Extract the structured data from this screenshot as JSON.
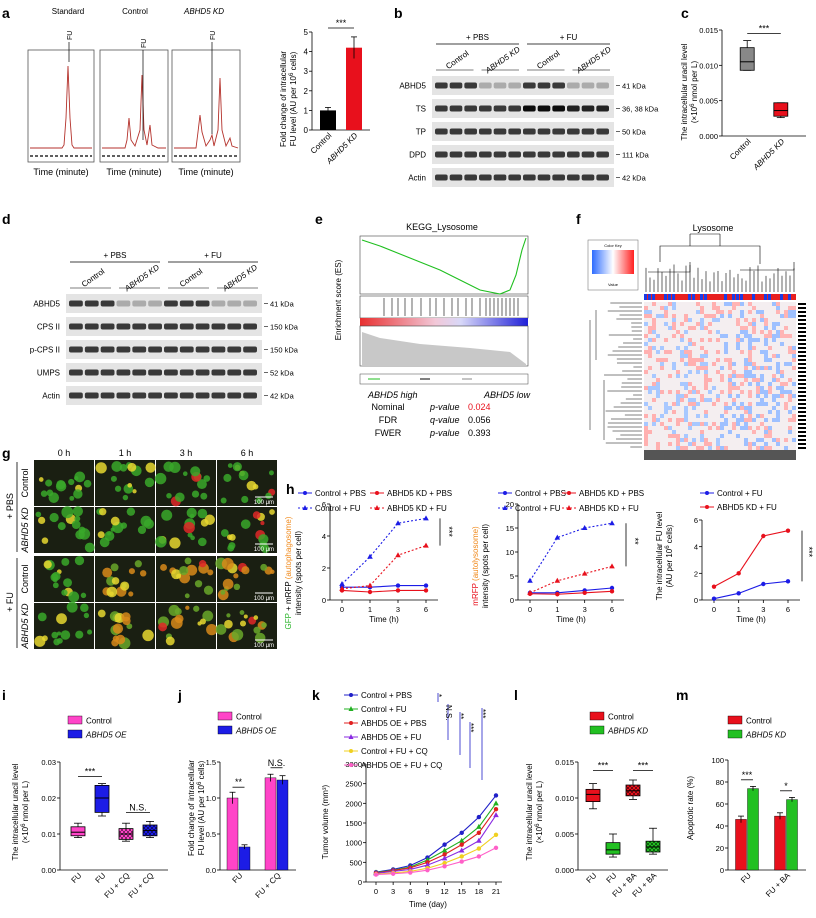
{
  "panel_labels": {
    "a": "a",
    "b": "b",
    "c": "c",
    "d": "d",
    "e": "e",
    "f": "f",
    "g": "g",
    "h": "h",
    "i": "i",
    "j": "j",
    "k": "k",
    "l": "l",
    "m": "m"
  },
  "colors": {
    "red": "#e8101c",
    "blue": "#1c1ce6",
    "magenta": "#ff44c8",
    "green": "#22c022",
    "purple": "#8a2be2",
    "yellow": "#f4e43a",
    "pink": "#ff70c0",
    "black": "#000000"
  },
  "panel_a": {
    "chrom_titles": [
      "Standard",
      "Control",
      "ABHD5 KD"
    ],
    "fu_tag": "FU",
    "xaxis": "Time (minute)",
    "bar": {
      "ylabel_1": "Fold change of intracellular",
      "ylabel_2": "FU level (AU per 10",
      "ylabel_sup": "6",
      "ylabel_3": " cells)",
      "categories": [
        "Control",
        "ABHD5 KD"
      ],
      "ticks": [
        "0",
        "1",
        "2",
        "3",
        "4",
        "5"
      ],
      "sig": "***"
    }
  },
  "panel_b": {
    "groups": [
      "+ PBS",
      "+ FU"
    ],
    "lanes": [
      "Control",
      "ABHD5 KD",
      "Control",
      "ABHD5 KD"
    ],
    "rows": [
      {
        "name": "ABHD5",
        "kda": "41 kDa"
      },
      {
        "name": "TS",
        "kda": "36, 38 kDa"
      },
      {
        "name": "TP",
        "kda": "50 kDa"
      },
      {
        "name": "DPD",
        "kda": "111 kDa"
      },
      {
        "name": "Actin",
        "kda": "42 kDa"
      }
    ]
  },
  "panel_c": {
    "ylabel_1": "The intracellular uracil level",
    "ylabel_2": "(×10",
    "ylabel_sup": "6",
    "ylabel_3": " nmol per L)",
    "ticks": [
      "0.000",
      "0.005",
      "0.010",
      "0.015"
    ],
    "categories": [
      "Control",
      "ABHD5 KD"
    ],
    "sig": "***"
  },
  "panel_d": {
    "groups": [
      "+ PBS",
      "+ FU"
    ],
    "lanes": [
      "Control",
      "ABHD5 KD",
      "Control",
      "ABHD5 KD"
    ],
    "rows": [
      {
        "name": "ABHD5",
        "kda": "41 kDa"
      },
      {
        "name": "CPS II",
        "kda": "150 kDa"
      },
      {
        "name": "p-CPS II",
        "kda": "150 kDa"
      },
      {
        "name": "UMPS",
        "kda": "52 kDa"
      },
      {
        "name": "Actin",
        "kda": "42 kDa"
      }
    ]
  },
  "panel_e": {
    "title": "KEGG_Lysosome",
    "ylabel": "Enrichment score (ES)",
    "left_label": "ABHD5 high",
    "right_label": "ABHD5 low",
    "stats": [
      {
        "name": "Nominal",
        "metric": "p-value",
        "value": "0.024",
        "red": true
      },
      {
        "name": "FDR",
        "metric": "q-value",
        "value": "0.056",
        "red": false
      },
      {
        "name": "FWER",
        "metric": "p-value",
        "value": "0.393",
        "red": false
      }
    ]
  },
  "panel_f": {
    "title": "Lysosome",
    "colorkey_title": "Color Key",
    "colorkey_axis": "Value"
  },
  "panel_g": {
    "times": [
      "0 h",
      "1 h",
      "3 h",
      "6 h"
    ],
    "row_labels": [
      "Control",
      "ABHD5 KD",
      "Control",
      "ABHD5 KD"
    ],
    "group_labels": [
      "+ PBS",
      "+ FU"
    ],
    "scale": "100 μm"
  },
  "panel_h": {
    "legend1": [
      "Control + PBS",
      "ABHD5 KD + PBS",
      "Control + FU",
      "ABHD5 KD + FU"
    ],
    "legend3": [
      "Control + FU",
      "ABHD5 KD + FU"
    ],
    "xlabel": "Time (h)",
    "x_ticks": [
      "0",
      "1",
      "3",
      "6"
    ],
    "chart1": {
      "ylabel_green": "GFP",
      "ylabel_plus": " + mRFP ",
      "ylabel_orange": "(autophagosome)",
      "ylabel_2": "intensity (spots per cell)",
      "ticks": [
        "0",
        "2",
        "4",
        "6"
      ],
      "sig": "***"
    },
    "chart2": {
      "ylabel_red": "mRFP ",
      "ylabel_orange": "(autolysosome)",
      "ylabel_2": "intensity (spots per cell)",
      "ticks": [
        "0",
        "5",
        "10",
        "15",
        "20"
      ],
      "sig": "**"
    },
    "chart3": {
      "ylabel_1": "The intracellular FU level",
      "ylabel_2": "(AU per 10",
      "ylabel_sup": "6",
      "ylabel_3": " cells)",
      "ticks": [
        "0",
        "2",
        "4",
        "6"
      ],
      "sig": "***"
    }
  },
  "panel_i": {
    "legend": [
      "Control",
      "ABHD5 OE"
    ],
    "ylabel_1": "The intracellular uracil level",
    "ylabel_2": "(×10",
    "ylabel_sup": "6",
    "ylabel_3": " nmol per L)",
    "ticks": [
      "0.00",
      "0.01",
      "0.02",
      "0.03"
    ],
    "categories": [
      "FU",
      "FU",
      "FU + CQ",
      "FU + CQ"
    ],
    "sig": [
      "***",
      "N.S."
    ]
  },
  "panel_j": {
    "legend": [
      "Control",
      "ABHD5 OE"
    ],
    "ylabel_1": "Fold change of intracellular",
    "ylabel_2": "FU level (AU per 10",
    "ylabel_sup": "6",
    "ylabel_3": " cells)",
    "ticks": [
      "0.0",
      "0.5",
      "1.0",
      "1.5"
    ],
    "categories": [
      "FU",
      "FU + CQ"
    ],
    "sig": [
      "**",
      "N.S."
    ]
  },
  "panel_k": {
    "legend": [
      "Control + PBS",
      "Control + FU",
      "ABHD5 OE + PBS",
      "ABHD5 OE + FU",
      "Control + FU + CQ",
      "ABHD5 OE + FU + CQ"
    ],
    "ylabel": "Tumor volume (mm³)",
    "xlabel": "Time (day)",
    "x_ticks": [
      "0",
      "3",
      "6",
      "9",
      "12",
      "15",
      "18",
      "21"
    ],
    "y_ticks": [
      "0",
      "500",
      "1000",
      "1500",
      "2000",
      "2500",
      "3000"
    ],
    "sig": [
      "*",
      "N.S.",
      "**",
      "***",
      "***"
    ]
  },
  "panel_l": {
    "legend": [
      "Control",
      "ABHD5 KD"
    ],
    "ylabel_1": "The intracellular uracil level",
    "ylabel_2": "(×10",
    "ylabel_sup": "6",
    "ylabel_3": " nmol per L)",
    "ticks": [
      "0.000",
      "0.005",
      "0.010",
      "0.015"
    ],
    "categories": [
      "FU",
      "FU",
      "FU + BA",
      "FU + BA"
    ],
    "sig": [
      "***",
      "***"
    ]
  },
  "panel_m": {
    "legend": [
      "Control",
      "ABHD5 KD"
    ],
    "ylabel": "Apoptotic rate (%)",
    "ticks": [
      "0",
      "20",
      "40",
      "60",
      "80",
      "100"
    ],
    "categories": [
      "FU",
      "FU + BA"
    ],
    "sig": [
      "***",
      "*"
    ]
  },
  "chart_data": [
    {
      "type": "bar",
      "panel": "a",
      "categories": [
        "Control",
        "ABHD5 KD"
      ],
      "values": [
        1.0,
        4.2
      ],
      "errors": [
        0.15,
        0.55
      ],
      "ylabel": "Fold change of intracellular FU level (AU per 10^6 cells)",
      "ylim": [
        0,
        5
      ]
    },
    {
      "type": "box",
      "panel": "c",
      "categories": [
        "Control",
        "ABHD5 KD"
      ],
      "series": [
        {
          "name": "Control",
          "min": 0.0093,
          "q1": 0.0093,
          "median": 0.0105,
          "q3": 0.0125,
          "max": 0.0135
        },
        {
          "name": "ABHD5 KD",
          "min": 0.0026,
          "q1": 0.0028,
          "median": 0.0036,
          "q3": 0.0047,
          "max": 0.0047
        }
      ],
      "ylabel": "The intracellular uracil level (×10^6 nmol per L)",
      "ylim": [
        0,
        0.015
      ]
    },
    {
      "type": "line",
      "panel": "h1",
      "x": [
        0,
        1,
        3,
        6
      ],
      "series": [
        {
          "name": "Control + PBS",
          "values": [
            0.8,
            0.8,
            0.9,
            0.9
          ]
        },
        {
          "name": "ABHD5 KD + PBS",
          "values": [
            0.6,
            0.5,
            0.6,
            0.6
          ]
        },
        {
          "name": "Control + FU",
          "values": [
            1.0,
            2.7,
            4.8,
            5.1
          ]
        },
        {
          "name": "ABHD5 KD + FU",
          "values": [
            0.7,
            0.9,
            2.8,
            3.4
          ]
        }
      ],
      "ylim": [
        0,
        6
      ]
    },
    {
      "type": "line",
      "panel": "h2",
      "x": [
        0,
        1,
        3,
        6
      ],
      "series": [
        {
          "name": "Control + PBS",
          "values": [
            1.5,
            1.5,
            2.0,
            2.5
          ]
        },
        {
          "name": "ABHD5 KD + PBS",
          "values": [
            1.3,
            1.2,
            1.5,
            1.8
          ]
        },
        {
          "name": "Control + FU",
          "values": [
            4.0,
            13.0,
            15.0,
            16.0
          ]
        },
        {
          "name": "ABHD5 KD + FU",
          "values": [
            1.5,
            4.0,
            5.5,
            7.0
          ]
        }
      ],
      "ylim": [
        0,
        20
      ]
    },
    {
      "type": "line",
      "panel": "h3",
      "x": [
        0,
        1,
        3,
        6
      ],
      "series": [
        {
          "name": "Control + FU",
          "values": [
            0.1,
            0.5,
            1.2,
            1.4
          ]
        },
        {
          "name": "ABHD5 KD + FU",
          "values": [
            1.0,
            2.0,
            4.8,
            5.2
          ]
        }
      ],
      "ylabel": "The intracellular FU level (AU per 10^6 cells)",
      "ylim": [
        0,
        6
      ]
    },
    {
      "type": "box",
      "panel": "i",
      "categories": [
        "FU",
        "FU",
        "FU + CQ",
        "FU + CQ"
      ],
      "series": [
        {
          "name": "Control",
          "min": 0.009,
          "q1": 0.0095,
          "median": 0.0105,
          "q3": 0.012,
          "max": 0.013
        },
        {
          "name": "ABHD5 OE",
          "min": 0.015,
          "q1": 0.016,
          "median": 0.02,
          "q3": 0.0235,
          "max": 0.024
        },
        {
          "name": "Control",
          "min": 0.008,
          "q1": 0.0085,
          "median": 0.01,
          "q3": 0.0115,
          "max": 0.013
        },
        {
          "name": "ABHD5 OE",
          "min": 0.009,
          "q1": 0.0095,
          "median": 0.011,
          "q3": 0.0125,
          "max": 0.0135
        }
      ],
      "ylim": [
        0,
        0.03
      ]
    },
    {
      "type": "bar",
      "panel": "j",
      "categories": [
        "FU",
        "FU + CQ"
      ],
      "series": [
        {
          "name": "Control",
          "values": [
            1.0,
            1.28
          ],
          "errors": [
            0.08,
            0.05
          ]
        },
        {
          "name": "ABHD5 OE",
          "values": [
            0.32,
            1.25
          ],
          "errors": [
            0.03,
            0.06
          ]
        }
      ],
      "ylim": [
        0,
        1.5
      ]
    },
    {
      "type": "line",
      "panel": "k",
      "x": [
        0,
        3,
        6,
        9,
        12,
        15,
        18,
        21
      ],
      "series": [
        {
          "name": "Control + PBS",
          "values": [
            250,
            320,
            420,
            620,
            950,
            1250,
            1650,
            2200
          ]
        },
        {
          "name": "Control + FU",
          "values": [
            240,
            300,
            380,
            560,
            800,
            1050,
            1400,
            2000
          ]
        },
        {
          "name": "ABHD5 OE + PBS",
          "values": [
            230,
            290,
            360,
            500,
            700,
            950,
            1250,
            1850
          ]
        },
        {
          "name": "ABHD5 OE + FU",
          "values": [
            220,
            270,
            320,
            430,
            600,
            800,
            1050,
            1700
          ]
        },
        {
          "name": "Control + FU + CQ",
          "values": [
            200,
            230,
            270,
            350,
            480,
            650,
            850,
            1200
          ]
        },
        {
          "name": "ABHD5 OE + FU + CQ",
          "values": [
            190,
            210,
            240,
            300,
            400,
            520,
            650,
            870
          ]
        }
      ],
      "ylabel": "Tumor volume (mm³)",
      "xlabel": "Time (day)",
      "ylim": [
        0,
        3000
      ]
    },
    {
      "type": "box",
      "panel": "l",
      "categories": [
        "FU",
        "FU",
        "FU + BA",
        "FU + BA"
      ],
      "series": [
        {
          "name": "Control",
          "min": 0.0085,
          "q1": 0.0095,
          "median": 0.0105,
          "q3": 0.0112,
          "max": 0.012
        },
        {
          "name": "ABHD5 KD",
          "min": 0.0018,
          "q1": 0.0022,
          "median": 0.0028,
          "q3": 0.0038,
          "max": 0.005
        },
        {
          "name": "Control",
          "min": 0.0098,
          "q1": 0.0103,
          "median": 0.011,
          "q3": 0.0118,
          "max": 0.0125
        },
        {
          "name": "ABHD5 KD",
          "min": 0.0022,
          "q1": 0.0025,
          "median": 0.0032,
          "q3": 0.004,
          "max": 0.0058
        }
      ],
      "ylim": [
        0,
        0.015
      ]
    },
    {
      "type": "bar",
      "panel": "m",
      "categories": [
        "FU",
        "FU + BA"
      ],
      "series": [
        {
          "name": "Control",
          "values": [
            46,
            49
          ],
          "errors": [
            3,
            3
          ]
        },
        {
          "name": "ABHD5 KD",
          "values": [
            74,
            64
          ],
          "errors": [
            2,
            2
          ]
        }
      ],
      "ylabel": "Apoptotic rate (%)",
      "ylim": [
        0,
        100
      ]
    }
  ]
}
